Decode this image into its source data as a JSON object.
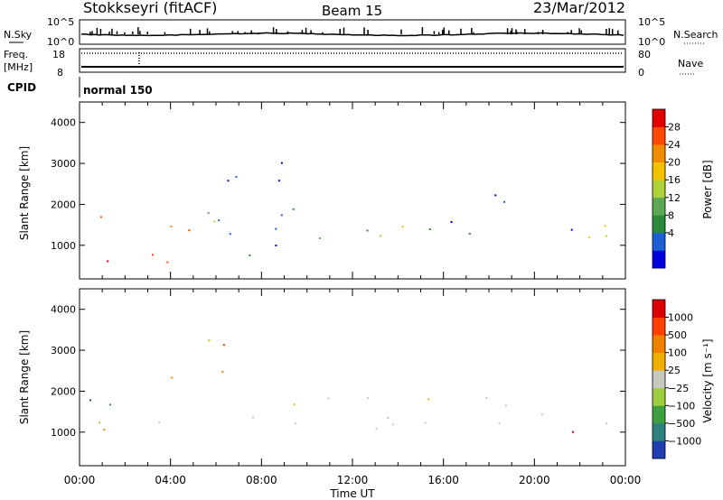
{
  "header": {
    "station": "Stokkseyri (fitACF)",
    "beam": "Beam 15",
    "date": "23/Mar/2012"
  },
  "side_labels": {
    "nsky": "N.Sky",
    "nsearch": "N.Search",
    "freq_line1": "Freq.",
    "freq_line2": "[MHz]",
    "nave": "Nave",
    "cpid": "CPID",
    "cpid_value": "normal 150"
  },
  "nsky_ticks": {
    "top": "10^5",
    "bottom": "10^0"
  },
  "freq_ticks": {
    "left_top": "18",
    "left_bottom": "8",
    "right_top": "80",
    "right_bottom": "0"
  },
  "x_axis": {
    "label": "Time UT",
    "ticks": [
      "00:00",
      "04:00",
      "08:00",
      "12:00",
      "16:00",
      "20:00",
      "00:00"
    ],
    "range_hours": [
      0,
      24
    ]
  },
  "chart_data": [
    {
      "type": "heatmap",
      "name": "power",
      "xlabel": "Time UT",
      "ylabel": "Slant Range [km]",
      "xlim": [
        0,
        24
      ],
      "ylim": [
        180,
        4500
      ],
      "yticks": [
        1000,
        2000,
        3000,
        4000
      ],
      "colorbar": {
        "label": "Power [dB]",
        "ticks": [
          "28",
          "24",
          "20",
          "16",
          "12",
          "8",
          "4"
        ],
        "colors": [
          "#0000dd",
          "#1f5fd6",
          "#2a8a3a",
          "#5ca854",
          "#b0d03c",
          "#f2c200",
          "#f08c00",
          "#ff4800",
          "#e00000"
        ]
      },
      "regions": [
        {
          "t0": 0.1,
          "t1": 4.8,
          "r0": 300,
          "r1": 1900,
          "weights": [
            0,
            0,
            0,
            1,
            2,
            3,
            3,
            4,
            5
          ]
        },
        {
          "t0": 4.5,
          "t1": 9.5,
          "r0": 500,
          "r1": 3500,
          "weights": [
            3,
            2,
            2,
            1,
            1,
            0,
            0,
            0,
            0
          ]
        },
        {
          "t0": 6.5,
          "t1": 22.5,
          "r0": 1100,
          "r1": 1800,
          "weights": [
            2,
            4,
            4,
            3,
            3,
            2,
            1,
            0,
            0
          ]
        },
        {
          "t0": 11.0,
          "t1": 19.0,
          "r0": 2000,
          "r1": 2400,
          "weights": [
            3,
            3,
            2,
            1,
            0,
            0,
            0,
            0,
            0
          ]
        },
        {
          "t0": 19.5,
          "t1": 24.0,
          "r0": 700,
          "r1": 1500,
          "weights": [
            0,
            1,
            1,
            2,
            2,
            3,
            3,
            3,
            3
          ]
        }
      ]
    },
    {
      "type": "heatmap",
      "name": "velocity",
      "xlabel": "Time UT",
      "ylabel": "Slant Range [km]",
      "xlim": [
        0,
        24
      ],
      "ylim": [
        180,
        4500
      ],
      "yticks": [
        1000,
        2000,
        3000,
        4000
      ],
      "colorbar": {
        "label": "Velocity [m s⁻¹]",
        "ticks": [
          "1000",
          "500",
          "100",
          "25",
          "−25",
          "−100",
          "−500",
          "−1000"
        ],
        "colors": [
          "#1f3fb0",
          "#2f7f7f",
          "#3f9f3f",
          "#9fcf3f",
          "#c8c8c0",
          "#f0b000",
          "#f08000",
          "#ff4000",
          "#dd0000"
        ]
      },
      "regions": [
        {
          "t0": 0.1,
          "t1": 4.0,
          "r0": 400,
          "r1": 1900,
          "weights": [
            2,
            2,
            2,
            3,
            1,
            0,
            2,
            1,
            0
          ]
        },
        {
          "t0": 4.0,
          "t1": 6.8,
          "r0": 1800,
          "r1": 3500,
          "weights": [
            0,
            0,
            0,
            1,
            1,
            2,
            5,
            2,
            0
          ]
        },
        {
          "t0": 7.5,
          "t1": 23.5,
          "r0": 1100,
          "r1": 2200,
          "weights": [
            0,
            0,
            0,
            1,
            8,
            1,
            0,
            0,
            0
          ]
        },
        {
          "t0": 21.0,
          "t1": 24.0,
          "r0": 600,
          "r1": 1500,
          "weights": [
            0,
            0,
            1,
            1,
            2,
            2,
            3,
            1,
            1
          ]
        }
      ]
    }
  ]
}
